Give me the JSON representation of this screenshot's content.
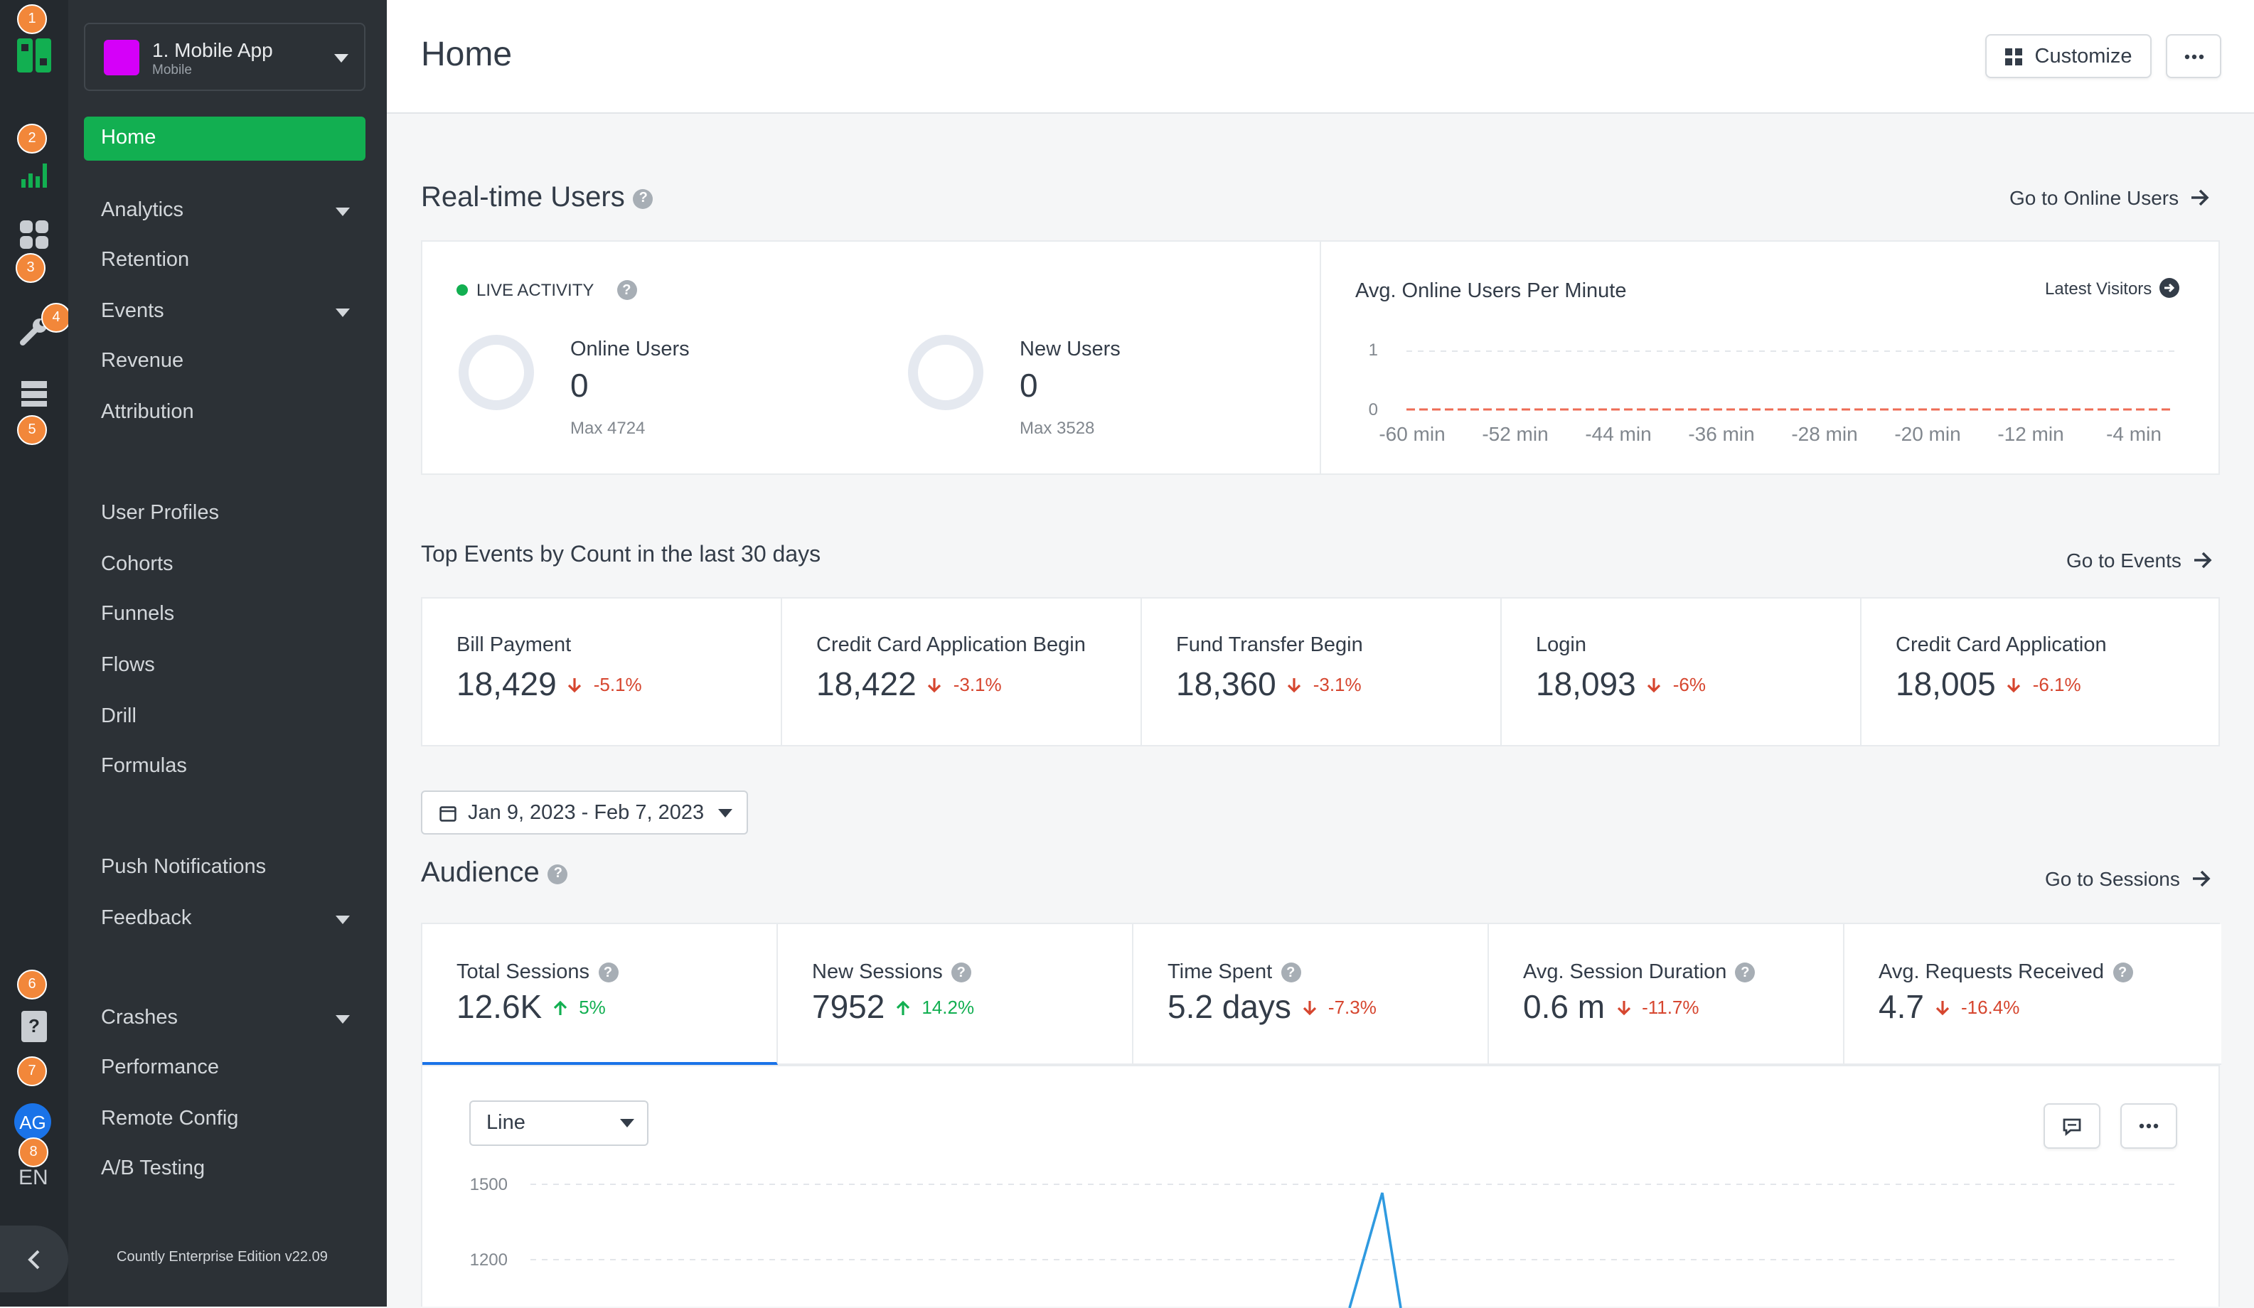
{
  "rail": {
    "badges": [
      "1",
      "2",
      "3",
      "4",
      "5",
      "6",
      "7",
      "8"
    ],
    "avatar_initials": "AG",
    "language": "EN",
    "colors": {
      "accent_green": "#12af51",
      "badge_orange": "#f2873a"
    }
  },
  "sidebar": {
    "app": {
      "name": "1. Mobile App",
      "type": "Mobile",
      "color": "#d500f9"
    },
    "items": [
      {
        "label": "Home",
        "active": true
      },
      {
        "label": "Analytics",
        "expandable": true
      },
      {
        "label": "Retention"
      },
      {
        "label": "Events",
        "expandable": true
      },
      {
        "label": "Revenue"
      },
      {
        "label": "Attribution"
      },
      {
        "label": "User Profiles"
      },
      {
        "label": "Cohorts"
      },
      {
        "label": "Funnels"
      },
      {
        "label": "Flows"
      },
      {
        "label": "Drill"
      },
      {
        "label": "Formulas"
      },
      {
        "label": "Push Notifications"
      },
      {
        "label": "Feedback",
        "expandable": true
      },
      {
        "label": "Crashes",
        "expandable": true
      },
      {
        "label": "Performance"
      },
      {
        "label": "Remote Config"
      },
      {
        "label": "A/B Testing"
      }
    ],
    "edition": "Countly Enterprise Edition v22.09"
  },
  "header": {
    "title": "Home",
    "customize_label": "Customize"
  },
  "realtime": {
    "title": "Real-time Users",
    "go_link": "Go to Online Users",
    "live_label": "LIVE ACTIVITY",
    "online": {
      "label": "Online Users",
      "value": "0",
      "max": "Max 4724"
    },
    "new_users": {
      "label": "New Users",
      "value": "0",
      "max": "Max 3528"
    },
    "chart": {
      "title": "Avg. Online Users Per Minute",
      "latest_link": "Latest Visitors",
      "y_ticks": [
        "1",
        "0"
      ],
      "x_ticks": [
        "-60 min",
        "-52 min",
        "-44 min",
        "-36 min",
        "-28 min",
        "-20 min",
        "-12 min",
        "-4 min"
      ]
    }
  },
  "top_events": {
    "title": "Top Events by Count in the last 30 days",
    "go_link": "Go to Events",
    "items": [
      {
        "label": "Bill Payment",
        "value": "18,429",
        "change": "-5.1%"
      },
      {
        "label": "Credit Card Application Begin",
        "value": "18,422",
        "change": "-3.1%"
      },
      {
        "label": "Fund Transfer Begin",
        "value": "18,360",
        "change": "-3.1%"
      },
      {
        "label": "Login",
        "value": "18,093",
        "change": "-6%"
      },
      {
        "label": "Credit Card Application",
        "value": "18,005",
        "change": "-6.1%"
      }
    ]
  },
  "date_range": "Jan 9, 2023 - Feb 7, 2023",
  "audience": {
    "title": "Audience",
    "go_link": "Go to Sessions",
    "metrics": [
      {
        "label": "Total Sessions",
        "value": "12.6K",
        "change": "5%",
        "dir": "up",
        "selected": true
      },
      {
        "label": "New Sessions",
        "value": "7952",
        "change": "14.2%",
        "dir": "up"
      },
      {
        "label": "Time Spent",
        "value": "5.2 days",
        "change": "-7.3%",
        "dir": "down"
      },
      {
        "label": "Avg. Session Duration",
        "value": "0.6 m",
        "change": "-11.7%",
        "dir": "down"
      },
      {
        "label": "Avg. Requests Received",
        "value": "4.7",
        "change": "-16.4%",
        "dir": "down"
      }
    ],
    "chart_type": "Line",
    "chart": {
      "y_ticks": [
        "1500",
        "1200"
      ]
    }
  },
  "chart_data": [
    {
      "type": "line",
      "title": "Avg. Online Users Per Minute",
      "x": [
        "-60 min",
        "-52 min",
        "-44 min",
        "-36 min",
        "-28 min",
        "-20 min",
        "-12 min",
        "-4 min"
      ],
      "series": [
        {
          "values": [
            0,
            0,
            0,
            0,
            0,
            0,
            0,
            0
          ]
        }
      ],
      "ylim": [
        0,
        1
      ]
    },
    {
      "type": "line",
      "title": "",
      "series": [
        {
          "name": "Total Sessions",
          "peak_value": 1480
        }
      ],
      "y_ticks": [
        1500,
        1200
      ]
    }
  ]
}
